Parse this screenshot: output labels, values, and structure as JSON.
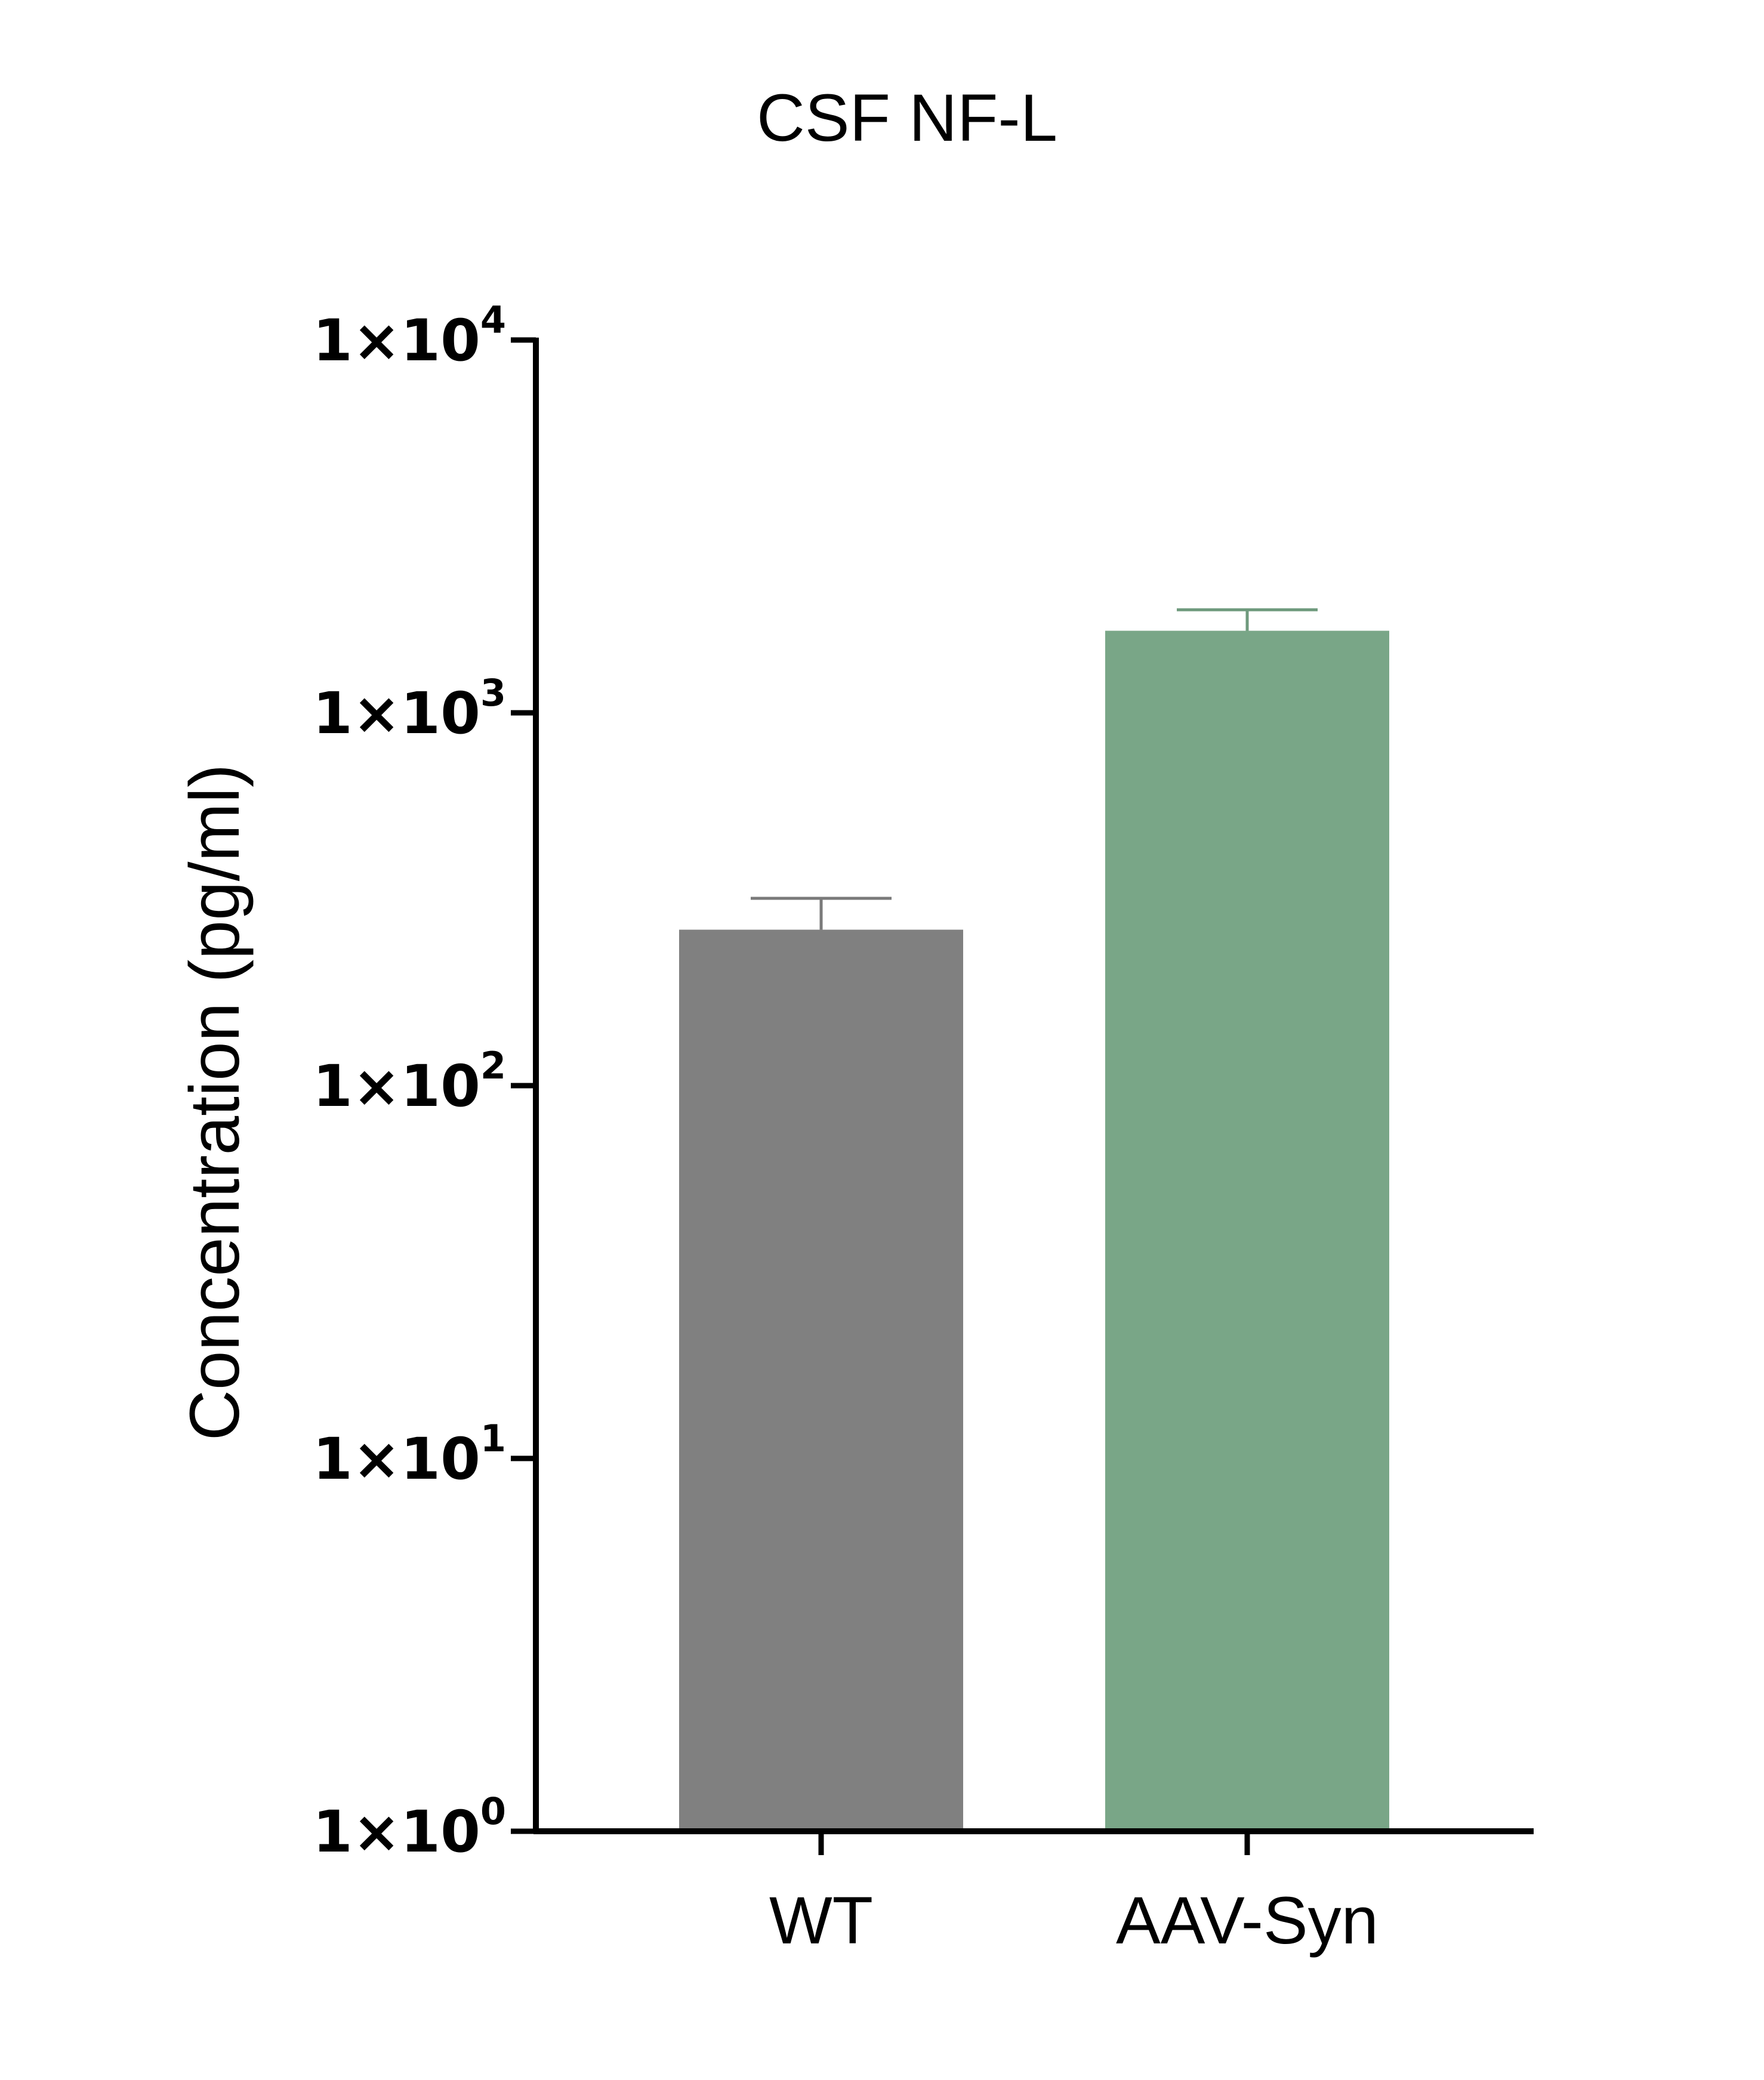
{
  "chart_data": {
    "type": "bar",
    "title": "CSF NF-L",
    "xlabel": "",
    "ylabel": "Concentration (pg/ml)",
    "yscale": "log",
    "ylim": [
      1,
      10000
    ],
    "yticks": [
      {
        "value": 1,
        "mantissa": "1×10",
        "exponent": "0"
      },
      {
        "value": 10,
        "mantissa": "1×10",
        "exponent": "1"
      },
      {
        "value": 100,
        "mantissa": "1×10",
        "exponent": "2"
      },
      {
        "value": 1000,
        "mantissa": "1×10",
        "exponent": "3"
      },
      {
        "value": 10000,
        "mantissa": "1×10",
        "exponent": "4"
      }
    ],
    "categories": [
      "WT",
      "AAV-Syn"
    ],
    "values": [
      262,
      1660
    ],
    "error_upper": [
      318,
      1890
    ],
    "colors": [
      "#808080",
      "#79a687"
    ],
    "error_colors": [
      "#7a7a7a",
      "#6f9a7d"
    ],
    "grid": false,
    "legend": "none"
  }
}
